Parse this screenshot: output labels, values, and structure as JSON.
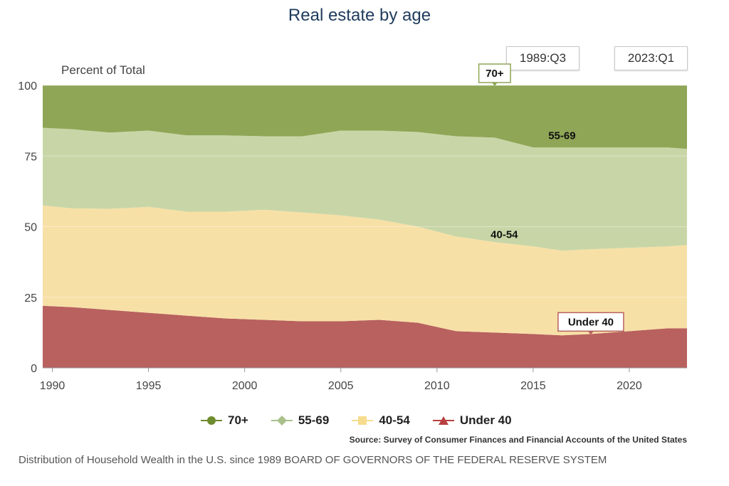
{
  "chart_data": {
    "type": "area",
    "stacked": true,
    "title": "Real estate by age",
    "ylabel": "Percent of Total",
    "xlabel": "",
    "ylim": [
      0,
      100
    ],
    "xlim": [
      1989.5,
      2023.0
    ],
    "x_ticks": [
      1990,
      1995,
      2000,
      2005,
      2010,
      2015,
      2020
    ],
    "y_ticks": [
      0,
      25,
      50,
      75,
      100
    ],
    "grid": true,
    "x": [
      1989.5,
      1991,
      1993,
      1995,
      1997,
      1999,
      2001,
      2003,
      2005,
      2007,
      2009,
      2011,
      2013,
      2015,
      2016.5,
      2018,
      2020,
      2022,
      2023.0
    ],
    "series": [
      {
        "name": "Under 40",
        "color": "#b8615f",
        "values": [
          22,
          21.5,
          20.5,
          19.5,
          18.5,
          17.5,
          17,
          16.5,
          16.5,
          17,
          16,
          13,
          12.5,
          12,
          11.5,
          12,
          13,
          14,
          14
        ]
      },
      {
        "name": "40-54",
        "color": "#f7e0a6",
        "values": [
          35.5,
          35,
          35.8,
          37.5,
          36.8,
          37.8,
          39,
          38.5,
          37.5,
          35.5,
          34,
          33.5,
          32,
          31,
          30,
          30,
          29.5,
          29,
          29.5
        ]
      },
      {
        "name": "55-69",
        "color": "#c8d6a7",
        "values": [
          27.5,
          28,
          27,
          27,
          27,
          27,
          26,
          27,
          30,
          31.5,
          33.5,
          35.5,
          37,
          35,
          36.5,
          36,
          35.5,
          35,
          34
        ]
      },
      {
        "name": "70+",
        "color": "#8fa656",
        "values": [
          15,
          15.5,
          16.7,
          16,
          17.7,
          17.7,
          18,
          18,
          16,
          16,
          16.5,
          18,
          18.5,
          22,
          22,
          22,
          22,
          22,
          22.5
        ]
      }
    ],
    "annotations": [
      {
        "text": "70+",
        "x": 2013,
        "y": 100
      },
      {
        "text": "55-69",
        "x": 2016.5,
        "y": 78
      },
      {
        "text": "40-54",
        "x": 2013.5,
        "y": 43
      },
      {
        "text": "Under 40",
        "x": 2018,
        "y": 12
      }
    ],
    "legend": {
      "position": "bottom",
      "items": [
        {
          "label": "70+",
          "marker": "circle",
          "color": "#6f8c2e"
        },
        {
          "label": "55-69",
          "marker": "diamond",
          "color": "#a9c08a"
        },
        {
          "label": "40-54",
          "marker": "square",
          "color": "#f5dc8e"
        },
        {
          "label": "Under 40",
          "marker": "triangle",
          "color": "#b84040"
        }
      ]
    },
    "range_selector": {
      "start": "1989:Q3",
      "end": "2023:Q1"
    },
    "source": "Source: Survey of Consumer Finances and Financial Accounts of the United States"
  },
  "caption": "Distribution of Household Wealth in the U.S. since 1989 BOARD OF GOVERNORS OF THE FEDERAL RESERVE SYSTEM"
}
